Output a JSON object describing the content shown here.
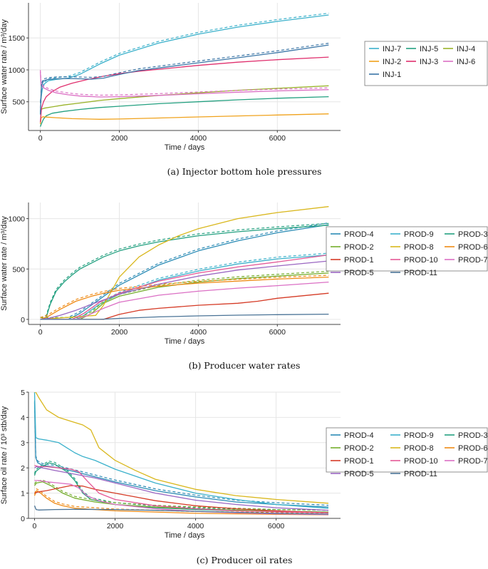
{
  "colors": {
    "PROD-4": "#2a8bb5",
    "PROD-9": "#3bb1cb",
    "PROD-3": "#23a080",
    "PROD-2": "#74ad2c",
    "PROD-8": "#d9b71c",
    "PROD-6": "#ef8a14",
    "PROD-1": "#d53b26",
    "PROD-10": "#e45896",
    "PROD-7": "#db6fc4",
    "PROD-5": "#9a66c2",
    "PROD-11": "#4a7396",
    "INJ-7": "#3bb1cb",
    "INJ-5": "#23a080",
    "INJ-4": "#99b32a",
    "INJ-2": "#f0a21c",
    "INJ-3": "#e0306e",
    "INJ-6": "#db6fc4",
    "INJ-1": "#3a75a6"
  },
  "chart_data": [
    {
      "type": "line",
      "title": "",
      "caption": "(a) Injector bottom hole pressures",
      "xlabel": "Time / days",
      "ylabel": "Surface water rate / m³/day",
      "xlim": [
        -300,
        7600
      ],
      "ylim": [
        50,
        2050
      ],
      "xticks": [
        0,
        2000,
        4000,
        6000
      ],
      "yticks": [
        500,
        1000,
        1500
      ],
      "grid": true,
      "legend_position": "right",
      "legend": [
        "INJ-7",
        "INJ-5",
        "INJ-4",
        "INJ-2",
        "INJ-3",
        "INJ-6",
        "INJ-1"
      ],
      "legend_cols": 3,
      "series": [
        {
          "name": "INJ-7",
          "x": [
            0,
            50,
            100,
            200,
            400,
            700,
            1000,
            1500,
            2000,
            3000,
            4000,
            5000,
            6000,
            7300
          ],
          "values": [
            480,
            700,
            780,
            830,
            850,
            870,
            930,
            1090,
            1230,
            1420,
            1560,
            1670,
            1760,
            1860
          ],
          "ref": true
        },
        {
          "name": "INJ-5",
          "x": [
            0,
            30,
            80,
            150,
            300,
            600,
            1000,
            1500,
            2000,
            3000,
            4000,
            5000,
            6000,
            7300
          ],
          "values": [
            110,
            160,
            230,
            280,
            320,
            350,
            380,
            410,
            430,
            470,
            500,
            530,
            555,
            580
          ]
        },
        {
          "name": "INJ-4",
          "x": [
            0,
            100,
            300,
            600,
            1000,
            1500,
            2000,
            3000,
            4000,
            5000,
            6000,
            7300
          ],
          "values": [
            380,
            400,
            420,
            450,
            480,
            520,
            550,
            600,
            640,
            680,
            710,
            750
          ]
        },
        {
          "name": "INJ-2",
          "x": [
            0,
            20,
            60,
            150,
            400,
            800,
            1500,
            2000,
            3000,
            4000,
            5000,
            6000,
            7300
          ],
          "values": [
            150,
            250,
            265,
            260,
            250,
            235,
            225,
            230,
            245,
            262,
            278,
            292,
            310
          ]
        },
        {
          "name": "INJ-3",
          "x": [
            0,
            30,
            80,
            150,
            300,
            500,
            800,
            1200,
            1600,
            2000,
            2500,
            3000,
            4000,
            5000,
            6000,
            7300
          ],
          "values": [
            180,
            400,
            500,
            580,
            660,
            730,
            790,
            850,
            900,
            940,
            980,
            1010,
            1070,
            1120,
            1160,
            1200
          ]
        },
        {
          "name": "INJ-6",
          "x": [
            0,
            20,
            80,
            200,
            400,
            700,
            1000,
            1500,
            2000,
            3000,
            4000,
            5000,
            6000,
            7300
          ],
          "values": [
            970,
            760,
            720,
            680,
            640,
            610,
            590,
            575,
            580,
            600,
            625,
            650,
            670,
            690
          ],
          "ref": true
        },
        {
          "name": "INJ-1",
          "x": [
            0,
            30,
            80,
            200,
            400,
            700,
            1000,
            1300,
            1600,
            1800,
            2100,
            2500,
            3000,
            3500,
            4000,
            5000,
            6000,
            7300
          ],
          "values": [
            300,
            760,
            830,
            850,
            860,
            865,
            860,
            855,
            870,
            900,
            940,
            990,
            1030,
            1070,
            1110,
            1190,
            1270,
            1390
          ],
          "ref": true
        }
      ]
    },
    {
      "type": "line",
      "title": "",
      "caption": "(b) Producer water rates",
      "xlabel": "Time / days",
      "ylabel": "Surface water rate / m³/day",
      "xlim": [
        -300,
        7600
      ],
      "ylim": [
        -50,
        1160
      ],
      "xticks": [
        0,
        2000,
        4000,
        6000
      ],
      "yticks": [
        0,
        500,
        1000
      ],
      "grid": true,
      "legend_position": "right",
      "legend": [
        "PROD-4",
        "PROD-9",
        "PROD-3",
        "PROD-2",
        "PROD-8",
        "PROD-6",
        "PROD-1",
        "PROD-10",
        "PROD-7",
        "PROD-5",
        "PROD-11"
      ],
      "legend_cols": 3,
      "series": [
        {
          "name": "PROD-4",
          "x": [
            0,
            700,
            1000,
            1500,
            2000,
            3000,
            4000,
            5000,
            6000,
            7300
          ],
          "values": [
            0,
            0,
            60,
            200,
            340,
            540,
            680,
            780,
            860,
            940
          ],
          "ref": true
        },
        {
          "name": "PROD-9",
          "x": [
            0,
            900,
            1100,
            1500,
            2000,
            3000,
            4000,
            5000,
            6000,
            7300
          ],
          "values": [
            0,
            0,
            40,
            150,
            250,
            390,
            480,
            550,
            600,
            640
          ],
          "ref": true
        },
        {
          "name": "PROD-3",
          "x": [
            0,
            150,
            250,
            400,
            600,
            800,
            1000,
            1300,
            1600,
            2000,
            2500,
            3000,
            4000,
            5000,
            6000,
            7300
          ],
          "values": [
            0,
            20,
            150,
            280,
            370,
            440,
            500,
            560,
            620,
            680,
            730,
            770,
            830,
            870,
            900,
            935
          ],
          "ref": true
        },
        {
          "name": "PROD-2",
          "x": [
            0,
            1000,
            1300,
            1600,
            2000,
            3000,
            4000,
            5000,
            6000,
            7300
          ],
          "values": [
            0,
            0,
            60,
            160,
            230,
            320,
            370,
            405,
            430,
            460
          ],
          "ref": true
        },
        {
          "name": "PROD-8",
          "x": [
            0,
            1400,
            1600,
            1800,
            2000,
            2500,
            3000,
            3500,
            4000,
            5000,
            6000,
            7300
          ],
          "values": [
            0,
            40,
            140,
            280,
            420,
            620,
            740,
            830,
            900,
            1000,
            1060,
            1120
          ]
        },
        {
          "name": "PROD-6",
          "x": [
            0,
            200,
            500,
            900,
            1300,
            1600,
            2000,
            3000,
            4000,
            5000,
            6000,
            7300
          ],
          "values": [
            0,
            30,
            100,
            180,
            230,
            260,
            290,
            330,
            360,
            380,
            400,
            420
          ],
          "ref": true
        },
        {
          "name": "PROD-1",
          "x": [
            0,
            1600,
            2000,
            2500,
            3000,
            4000,
            5000,
            5500,
            6000,
            7300
          ],
          "values": [
            0,
            0,
            50,
            90,
            110,
            140,
            160,
            180,
            210,
            260
          ]
        },
        {
          "name": "PROD-10",
          "x": [
            0,
            800,
            1100,
            1500,
            2000,
            3000,
            4000,
            5000,
            6000,
            7300
          ],
          "values": [
            0,
            0,
            60,
            170,
            260,
            380,
            460,
            520,
            570,
            640
          ]
        },
        {
          "name": "PROD-7",
          "x": [
            0,
            900,
            1200,
            1600,
            2000,
            3000,
            4000,
            5000,
            6000,
            7300
          ],
          "values": [
            0,
            0,
            40,
            110,
            170,
            240,
            280,
            310,
            335,
            370
          ]
        },
        {
          "name": "PROD-5",
          "x": [
            0,
            200,
            500,
            900,
            1300,
            2000,
            3000,
            4000,
            5000,
            6000,
            7300
          ],
          "values": [
            0,
            10,
            40,
            90,
            150,
            250,
            350,
            430,
            490,
            530,
            580
          ]
        },
        {
          "name": "PROD-11",
          "x": [
            0,
            1500,
            2000,
            3000,
            4000,
            5000,
            6000,
            7300
          ],
          "values": [
            0,
            0,
            10,
            25,
            35,
            42,
            47,
            52
          ]
        }
      ]
    },
    {
      "type": "line",
      "title": "",
      "caption": "(c) Producer oil rates",
      "xlabel": "Time / days",
      "ylabel": "Surface oil rate / 10³ stb/day",
      "xlim": [
        -150,
        7600
      ],
      "ylim": [
        0,
        5
      ],
      "xticks": [
        0,
        2000,
        4000,
        6000
      ],
      "yticks": [
        0,
        1,
        2,
        3,
        4,
        5
      ],
      "grid": true,
      "legend_position": "right",
      "legend": [
        "PROD-4",
        "PROD-9",
        "PROD-3",
        "PROD-2",
        "PROD-8",
        "PROD-6",
        "PROD-1",
        "PROD-10",
        "PROD-7",
        "PROD-5",
        "PROD-11"
      ],
      "legend_cols": 3,
      "series": [
        {
          "name": "PROD-4",
          "x": [
            0,
            30,
            80,
            200,
            600,
            1000,
            1500,
            2000,
            3000,
            4000,
            5000,
            6000,
            7300
          ],
          "values": [
            4.6,
            2.4,
            2.2,
            2.1,
            2.0,
            1.85,
            1.65,
            1.45,
            1.1,
            0.85,
            0.65,
            0.55,
            0.45
          ],
          "ref": true
        },
        {
          "name": "PROD-9",
          "x": [
            0,
            30,
            100,
            300,
            600,
            800,
            1000,
            1200,
            1500,
            2000,
            3000,
            4000,
            5000,
            6000,
            7300
          ],
          "values": [
            5.0,
            3.2,
            3.15,
            3.1,
            3.0,
            2.8,
            2.6,
            2.45,
            2.3,
            1.95,
            1.4,
            1.0,
            0.75,
            0.55,
            0.4
          ]
        },
        {
          "name": "PROD-3",
          "x": [
            0,
            30,
            100,
            200,
            350,
            500,
            650,
            800,
            1000,
            1200,
            1400,
            2000,
            3000,
            4000,
            5000,
            6000,
            7300
          ],
          "values": [
            1.7,
            1.85,
            1.95,
            2.05,
            2.2,
            2.15,
            2.0,
            1.85,
            1.5,
            1.0,
            0.75,
            0.55,
            0.42,
            0.35,
            0.3,
            0.28,
            0.25
          ],
          "ref": true
        },
        {
          "name": "PROD-2",
          "x": [
            0,
            50,
            200,
            400,
            700,
            1000,
            1500,
            2000,
            3000,
            4000,
            5000,
            6000,
            7300
          ],
          "values": [
            1.3,
            1.4,
            1.45,
            1.3,
            1.0,
            0.8,
            0.65,
            0.55,
            0.45,
            0.38,
            0.33,
            0.28,
            0.25
          ],
          "ref": true
        },
        {
          "name": "PROD-8",
          "x": [
            0,
            30,
            100,
            300,
            600,
            900,
            1200,
            1400,
            1600,
            2000,
            2500,
            3000,
            4000,
            5000,
            6000,
            7300
          ],
          "values": [
            5.0,
            5.0,
            4.8,
            4.3,
            4.0,
            3.85,
            3.7,
            3.5,
            2.8,
            2.3,
            1.9,
            1.55,
            1.15,
            0.9,
            0.75,
            0.6
          ]
        },
        {
          "name": "PROD-6",
          "x": [
            0,
            50,
            150,
            300,
            500,
            700,
            1000,
            1500,
            2000,
            3000,
            4000,
            5000,
            6000,
            7300
          ],
          "values": [
            0.9,
            1.1,
            1.0,
            0.8,
            0.6,
            0.5,
            0.4,
            0.35,
            0.3,
            0.25,
            0.2,
            0.18,
            0.16,
            0.14
          ],
          "ref": true
        },
        {
          "name": "PROD-1",
          "x": [
            0,
            100,
            300,
            600,
            900,
            1200,
            1500,
            2000,
            2500,
            3000,
            4000,
            5000,
            6000,
            7300
          ],
          "values": [
            1.0,
            1.05,
            1.1,
            1.2,
            1.3,
            1.28,
            1.15,
            1.0,
            0.85,
            0.7,
            0.5,
            0.38,
            0.3,
            0.22
          ]
        },
        {
          "name": "PROD-10",
          "x": [
            0,
            100,
            300,
            600,
            900,
            1100,
            1300,
            1600,
            2000,
            3000,
            4000,
            5000,
            6000,
            7300
          ],
          "values": [
            2.1,
            2.05,
            2.05,
            2.0,
            1.95,
            1.85,
            1.5,
            1.0,
            0.75,
            0.5,
            0.38,
            0.3,
            0.26,
            0.22
          ]
        },
        {
          "name": "PROD-7",
          "x": [
            0,
            100,
            300,
            600,
            900,
            1100,
            1300,
            1600,
            2000,
            3000,
            4000,
            5000,
            6000,
            7300
          ],
          "values": [
            1.5,
            1.5,
            1.45,
            1.4,
            1.35,
            1.2,
            0.9,
            0.7,
            0.55,
            0.38,
            0.28,
            0.22,
            0.18,
            0.15
          ]
        },
        {
          "name": "PROD-5",
          "x": [
            0,
            50,
            200,
            500,
            1000,
            1500,
            2000,
            2500,
            3000,
            4000,
            5000,
            6000,
            7300
          ],
          "values": [
            2.0,
            2.05,
            2.0,
            1.9,
            1.75,
            1.6,
            1.4,
            1.2,
            1.0,
            0.72,
            0.55,
            0.42,
            0.32
          ]
        },
        {
          "name": "PROD-11",
          "x": [
            0,
            40,
            100,
            500,
            1000,
            2000,
            3000,
            4000,
            5000,
            6000,
            7300
          ],
          "values": [
            0.5,
            0.35,
            0.33,
            0.35,
            0.36,
            0.35,
            0.32,
            0.28,
            0.24,
            0.2,
            0.17
          ]
        }
      ]
    }
  ]
}
